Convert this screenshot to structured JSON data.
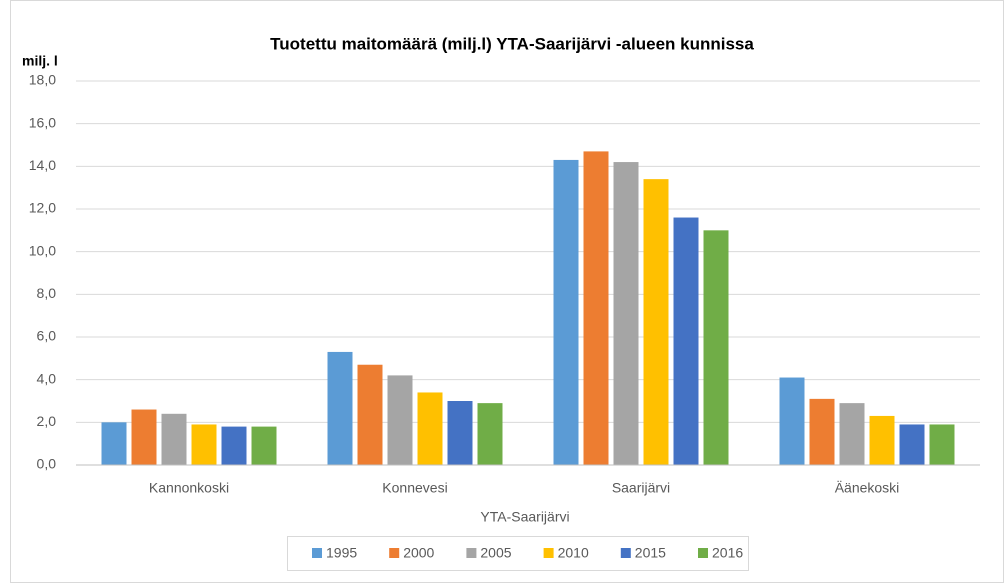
{
  "chart_data": {
    "type": "bar",
    "title": "Tuotettu maitomäärä (milj.l) YTA-Saarijärvi -alueen kunnissa",
    "y_label": "milj. l",
    "x_label": "YTA-Saarijärvi",
    "categories": [
      "Kannonkoski",
      "Konnevesi",
      "Saarijärvi",
      "Äänekoski"
    ],
    "series": [
      {
        "name": "1995",
        "color": "#5b9bd5",
        "values": [
          2.0,
          5.3,
          14.3,
          4.1
        ]
      },
      {
        "name": "2000",
        "color": "#ed7d31",
        "values": [
          2.6,
          4.7,
          14.7,
          3.1
        ]
      },
      {
        "name": "2005",
        "color": "#a5a5a5",
        "values": [
          2.4,
          4.2,
          14.2,
          2.9
        ]
      },
      {
        "name": "2010",
        "color": "#ffc000",
        "values": [
          1.9,
          3.4,
          13.4,
          2.3
        ]
      },
      {
        "name": "2015",
        "color": "#4472c4",
        "values": [
          1.8,
          3.0,
          11.6,
          1.9
        ]
      },
      {
        "name": "2016",
        "color": "#70ad47",
        "values": [
          1.8,
          2.9,
          11.0,
          1.9
        ]
      }
    ],
    "ylim": [
      0,
      18
    ],
    "yticks": [
      {
        "value": 0,
        "label": "0,0"
      },
      {
        "value": 2,
        "label": "2,0"
      },
      {
        "value": 4,
        "label": "4,0"
      },
      {
        "value": 6,
        "label": "6,0"
      },
      {
        "value": 8,
        "label": "8,0"
      },
      {
        "value": 10,
        "label": "10,0"
      },
      {
        "value": 12,
        "label": "12,0"
      },
      {
        "value": 14,
        "label": "14,0"
      },
      {
        "value": 16,
        "label": "16,0"
      },
      {
        "value": 18,
        "label": "18,0"
      }
    ],
    "grid": true,
    "legend": "bottom"
  }
}
